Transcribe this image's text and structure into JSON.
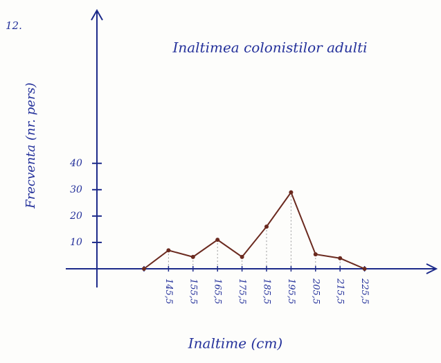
{
  "chart_data": {
    "type": "line",
    "annotations": [
      "12."
    ],
    "title": "Inaltimea colonistilor adulti",
    "y_label": "Frecventa (nr. pers)",
    "x_label": "Inaltime (cm)",
    "categories": [
      null,
      "145,5",
      "155,5",
      "165,5",
      "175,5",
      "185,5",
      "195,5",
      "205,5",
      "215,5",
      "225,5"
    ],
    "values": [
      0,
      7,
      4.5,
      11,
      4.5,
      16,
      29,
      5.5,
      4,
      0
    ],
    "color": "#6b2a1f",
    "axis_color": "#1c2a8a",
    "ylim": [
      0,
      98
    ],
    "yticks": [
      10,
      20,
      30,
      40
    ]
  }
}
